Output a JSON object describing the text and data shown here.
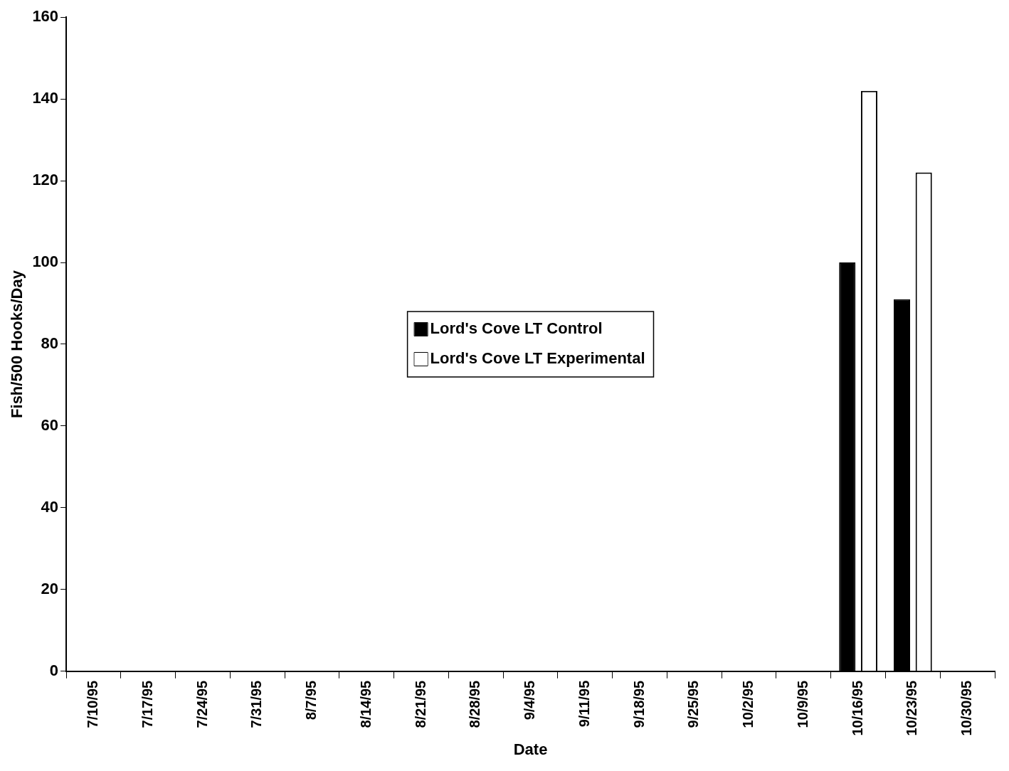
{
  "chart_data": {
    "type": "bar",
    "xlabel": "Date",
    "ylabel": "Fish/500 Hooks/Day",
    "categories": [
      "7/10/95",
      "7/17/95",
      "7/24/95",
      "7/31/95",
      "8/7/95",
      "8/14/95",
      "8/21/95",
      "8/28/95",
      "9/4/95",
      "9/11/95",
      "9/18/95",
      "9/25/95",
      "10/2/95",
      "10/9/95",
      "10/16/95",
      "10/23/95",
      "10/30/95"
    ],
    "series": [
      {
        "name": "Lord's Cove LT Control",
        "color": "#000000",
        "values": [
          0,
          0,
          0,
          0,
          0,
          0,
          0,
          0,
          0,
          0,
          0,
          0,
          0,
          0,
          100,
          91,
          0
        ]
      },
      {
        "name": "Lord's Cove LT Experimental",
        "color": "#ffffff",
        "values": [
          0,
          0,
          0,
          0,
          0,
          0,
          0,
          0,
          0,
          0,
          0,
          0,
          0,
          0,
          142,
          122,
          0
        ]
      }
    ],
    "ylim": [
      0,
      160
    ],
    "yticks": [
      0,
      20,
      40,
      60,
      80,
      100,
      120,
      140,
      160
    ],
    "grid": false,
    "legend": "center"
  }
}
